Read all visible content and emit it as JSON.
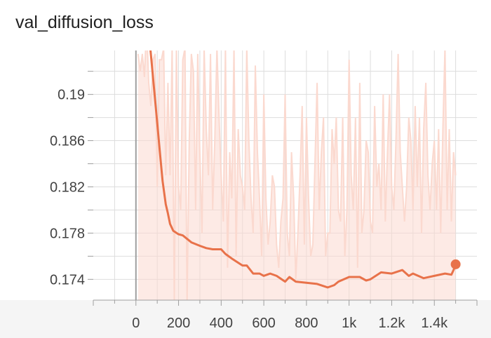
{
  "chart_data": {
    "type": "line",
    "title": "val_diffusion_loss",
    "xlabel": "",
    "ylabel": "",
    "x_tick_labels": [
      "0",
      "200",
      "400",
      "600",
      "800",
      "1k",
      "1.2k",
      "1.4k"
    ],
    "x_ticks": [
      0,
      200,
      400,
      600,
      800,
      1000,
      1200,
      1400
    ],
    "y_tick_labels": [
      "0.174",
      "0.178",
      "0.182",
      "0.186",
      "0.19"
    ],
    "y_ticks": [
      0.174,
      0.178,
      0.182,
      0.186,
      0.19
    ],
    "xlim": [
      -200,
      1600
    ],
    "ylim": [
      0.1722,
      0.1938
    ],
    "grid": true,
    "colors": {
      "smoothed": "#e8724a",
      "raw": "#fbd9cf",
      "axis": "#9e9e9e"
    },
    "series": [
      {
        "role": "smoothed",
        "x": [
          60,
          80,
          100,
          115,
          125,
          140,
          150,
          160,
          175,
          200,
          220,
          260,
          300,
          330,
          360,
          400,
          420,
          450,
          500,
          520,
          550,
          580,
          600,
          630,
          660,
          700,
          720,
          750,
          800,
          850,
          900,
          930,
          950,
          1000,
          1050,
          1080,
          1100,
          1150,
          1200,
          1250,
          1280,
          1300,
          1350,
          1400,
          1450,
          1480,
          1500
        ],
        "y": [
          0.1955,
          0.1915,
          0.1875,
          0.1845,
          0.1825,
          0.1805,
          0.1797,
          0.1788,
          0.1782,
          0.1779,
          0.1778,
          0.1772,
          0.1769,
          0.1767,
          0.1766,
          0.1766,
          0.1762,
          0.1758,
          0.1752,
          0.1752,
          0.1745,
          0.1745,
          0.1743,
          0.1745,
          0.1743,
          0.1738,
          0.1742,
          0.1738,
          0.1737,
          0.1736,
          0.1733,
          0.1735,
          0.1738,
          0.1742,
          0.1742,
          0.1739,
          0.174,
          0.1746,
          0.1745,
          0.1748,
          0.1743,
          0.1745,
          0.1741,
          0.1743,
          0.1745,
          0.1744,
          0.1752
        ]
      },
      {
        "role": "raw",
        "x": [
          10,
          20,
          30,
          40,
          50,
          60,
          70,
          80,
          90,
          100,
          110,
          120,
          130,
          140,
          150,
          160,
          170,
          180,
          190,
          200,
          210,
          220,
          230,
          240,
          250,
          260,
          270,
          280,
          290,
          300,
          310,
          320,
          330,
          340,
          350,
          360,
          370,
          380,
          390,
          400,
          410,
          420,
          430,
          440,
          450,
          460,
          470,
          480,
          490,
          500,
          510,
          520,
          530,
          540,
          550,
          560,
          570,
          580,
          590,
          600,
          610,
          620,
          630,
          640,
          650,
          660,
          670,
          680,
          690,
          700,
          710,
          720,
          730,
          740,
          750,
          760,
          770,
          780,
          790,
          800,
          810,
          820,
          830,
          840,
          850,
          860,
          870,
          880,
          890,
          900,
          910,
          920,
          930,
          940,
          950,
          960,
          970,
          980,
          990,
          1000,
          1010,
          1020,
          1030,
          1040,
          1050,
          1060,
          1070,
          1080,
          1090,
          1100,
          1110,
          1120,
          1130,
          1140,
          1150,
          1160,
          1170,
          1180,
          1190,
          1200,
          1210,
          1220,
          1230,
          1240,
          1250,
          1260,
          1270,
          1280,
          1290,
          1300,
          1310,
          1320,
          1330,
          1340,
          1350,
          1360,
          1370,
          1380,
          1390,
          1400,
          1410,
          1420,
          1430,
          1440,
          1450,
          1460,
          1470,
          1480,
          1490,
          1500
        ],
        "y": [
          0.1935,
          0.192,
          0.1935,
          0.1915,
          0.196,
          0.191,
          0.189,
          0.193,
          0.1935,
          0.182,
          0.193,
          0.193,
          0.194,
          0.183,
          0.191,
          0.183,
          0.194,
          0.172,
          0.194,
          0.182,
          0.18,
          0.193,
          0.194,
          0.172,
          0.186,
          0.1935,
          0.192,
          0.18,
          0.1935,
          0.185,
          0.178,
          0.194,
          0.187,
          0.183,
          0.1935,
          0.18,
          0.186,
          0.194,
          0.188,
          0.183,
          0.179,
          0.194,
          0.175,
          0.185,
          0.181,
          0.194,
          0.176,
          0.187,
          0.183,
          0.182,
          0.18,
          0.194,
          0.186,
          0.181,
          0.178,
          0.1925,
          0.185,
          0.181,
          0.176,
          0.19,
          0.181,
          0.177,
          0.179,
          0.183,
          0.182,
          0.177,
          0.175,
          0.179,
          0.181,
          0.19,
          0.178,
          0.176,
          0.185,
          0.181,
          0.174,
          0.178,
          0.183,
          0.189,
          0.177,
          0.188,
          0.181,
          0.176,
          0.177,
          0.184,
          0.191,
          0.18,
          0.185,
          0.188,
          0.176,
          0.178,
          0.178,
          0.187,
          0.184,
          0.188,
          0.18,
          0.179,
          0.188,
          0.176,
          0.18,
          0.193,
          0.183,
          0.18,
          0.188,
          0.175,
          0.191,
          0.178,
          0.18,
          0.186,
          0.185,
          0.179,
          0.178,
          0.189,
          0.182,
          0.184,
          0.18,
          0.19,
          0.179,
          0.185,
          0.19,
          0.182,
          0.18,
          0.186,
          0.1935,
          0.185,
          0.182,
          0.179,
          0.182,
          0.188,
          0.186,
          0.18,
          0.189,
          0.182,
          0.188,
          0.178,
          0.187,
          0.191,
          0.183,
          0.18,
          0.184,
          0.186,
          0.18,
          0.187,
          0.178,
          0.187,
          0.194,
          0.18,
          0.187,
          0.179,
          0.185,
          0.183
        ]
      }
    ],
    "last_point": {
      "x": 1500,
      "y": 0.1753
    }
  }
}
